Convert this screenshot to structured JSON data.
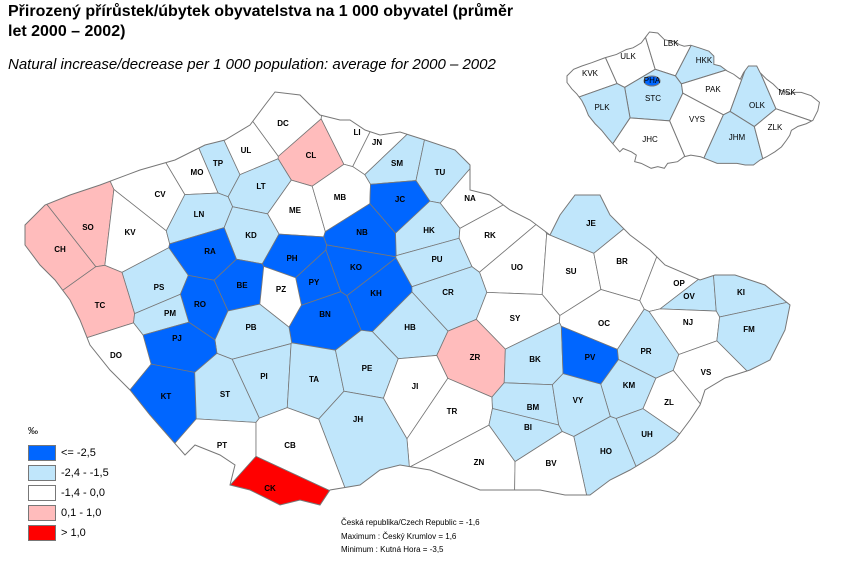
{
  "title": "Přirozený přírůstek/úbytek obyvatelstva na 1 000 obyvatel (průměr let 2000 – 2002)",
  "subtitle": "Natural increase/decrease per 1 000 population: average for 2000 – 2002",
  "legend": {
    "unit": "‰",
    "classes": [
      {
        "label": "<= -2,5",
        "color": "#0066ff"
      },
      {
        "label": "-2,4 -  -1,5",
        "color": "#c0e6fb"
      },
      {
        "label": "-1,4 -  0,0",
        "color": "#ffffff"
      },
      {
        "label": "0,1 - 1,0",
        "color": "#ffbcbc"
      },
      {
        "label": "> 1,0",
        "color": "#ff0000"
      }
    ]
  },
  "stats": {
    "country": "Česká republika/Czech Republic = -1,6",
    "maximum": "Maximum : Český Krumlov = 1,6",
    "minimum": "Minimum : Kutná Hora = -3,5"
  },
  "border_color": "#777777",
  "districts": [
    [
      "DC",
      283,
      124,
      2
    ],
    [
      "CL",
      311,
      156,
      3
    ],
    [
      "LI",
      357,
      133,
      2
    ],
    [
      "JN",
      377,
      143,
      2
    ],
    [
      "TP",
      218,
      164,
      1
    ],
    [
      "UL",
      246,
      151,
      2
    ],
    [
      "MO",
      197,
      173,
      2
    ],
    [
      "SM",
      397,
      164,
      1
    ],
    [
      "TU",
      440,
      173,
      1
    ],
    [
      "LT",
      261,
      187,
      1
    ],
    [
      "CV",
      160,
      195,
      2
    ],
    [
      "ME",
      295,
      211,
      2
    ],
    [
      "MB",
      340,
      198,
      2
    ],
    [
      "JC",
      400,
      200,
      0
    ],
    [
      "NA",
      470,
      199,
      2
    ],
    [
      "SO",
      88,
      228,
      3
    ],
    [
      "CH",
      60,
      250,
      3
    ],
    [
      "KV",
      130,
      233,
      2
    ],
    [
      "LN",
      199,
      215,
      1
    ],
    [
      "KD",
      251,
      236,
      1
    ],
    [
      "NB",
      362,
      233,
      0
    ],
    [
      "HK",
      429,
      231,
      1
    ],
    [
      "JE",
      591,
      224,
      1
    ],
    [
      "RK",
      490,
      236,
      2
    ],
    [
      "RA",
      210,
      252,
      0
    ],
    [
      "PH",
      292,
      259,
      0
    ],
    [
      "KO",
      356,
      268,
      0
    ],
    [
      "PU",
      437,
      260,
      1
    ],
    [
      "UO",
      517,
      268,
      2
    ],
    [
      "SU",
      571,
      272,
      2
    ],
    [
      "BR",
      622,
      262,
      2
    ],
    [
      "PY",
      314,
      283,
      0
    ],
    [
      "BE",
      242,
      286,
      0
    ],
    [
      "PZ",
      281,
      290,
      2
    ],
    [
      "PS",
      159,
      288,
      1
    ],
    [
      "TC",
      100,
      306,
      3
    ],
    [
      "RO",
      200,
      305,
      0
    ],
    [
      "PM",
      170,
      314,
      1
    ],
    [
      "KH",
      376,
      294,
      0
    ],
    [
      "CR",
      448,
      293,
      1
    ],
    [
      "OP",
      679,
      284,
      2
    ],
    [
      "OV",
      689,
      297,
      1
    ],
    [
      "KI",
      741,
      293,
      1
    ],
    [
      "BN",
      325,
      315,
      0
    ],
    [
      "SY",
      515,
      319,
      2
    ],
    [
      "OC",
      604,
      324,
      2
    ],
    [
      "NJ",
      688,
      323,
      2
    ],
    [
      "FM",
      749,
      330,
      1
    ],
    [
      "PB",
      251,
      328,
      1
    ],
    [
      "HB",
      410,
      328,
      1
    ],
    [
      "PJ",
      177,
      339,
      0
    ],
    [
      "DO",
      116,
      356,
      2
    ],
    [
      "ZR",
      475,
      358,
      3
    ],
    [
      "BK",
      535,
      360,
      1
    ],
    [
      "PV",
      590,
      358,
      0
    ],
    [
      "PR",
      646,
      352,
      1
    ],
    [
      "PI",
      264,
      377,
      1
    ],
    [
      "TA",
      314,
      380,
      1
    ],
    [
      "PE",
      367,
      369,
      1
    ],
    [
      "JI",
      415,
      387,
      2
    ],
    [
      "KM",
      629,
      386,
      1
    ],
    [
      "VS",
      706,
      373,
      2
    ],
    [
      "KT",
      166,
      397,
      0
    ],
    [
      "ST",
      225,
      395,
      1
    ],
    [
      "BM",
      533,
      408,
      1
    ],
    [
      "VY",
      578,
      401,
      1
    ],
    [
      "TR",
      452,
      412,
      2
    ],
    [
      "ZL",
      669,
      403,
      2
    ],
    [
      "JH",
      358,
      420,
      1
    ],
    [
      "BI",
      528,
      428,
      1
    ],
    [
      "UH",
      647,
      435,
      1
    ],
    [
      "PT",
      222,
      446,
      2
    ],
    [
      "CB",
      290,
      446,
      2
    ],
    [
      "HO",
      606,
      452,
      1
    ],
    [
      "ZN",
      479,
      463,
      2
    ],
    [
      "BV",
      551,
      464,
      2
    ],
    [
      "CK",
      270,
      489,
      4
    ]
  ],
  "regions": [
    [
      "KVK",
      590,
      74,
      2
    ],
    [
      "ULK",
      628,
      57,
      2
    ],
    [
      "LBK",
      671,
      44,
      2
    ],
    [
      "HKK",
      704,
      61,
      1
    ],
    [
      "STC",
      653,
      99,
      1
    ],
    [
      "PLK",
      602,
      108,
      1
    ],
    [
      "PAK",
      713,
      90,
      2
    ],
    [
      "OLK",
      757,
      106,
      1
    ],
    [
      "MSK",
      787,
      93,
      2
    ],
    [
      "VYS",
      697,
      120,
      2
    ],
    [
      "JHC",
      650,
      140,
      2
    ],
    [
      "JHM",
      737,
      138,
      1
    ],
    [
      "ZLK",
      775,
      128,
      2
    ],
    [
      "PHA",
      652,
      81,
      0
    ]
  ]
}
